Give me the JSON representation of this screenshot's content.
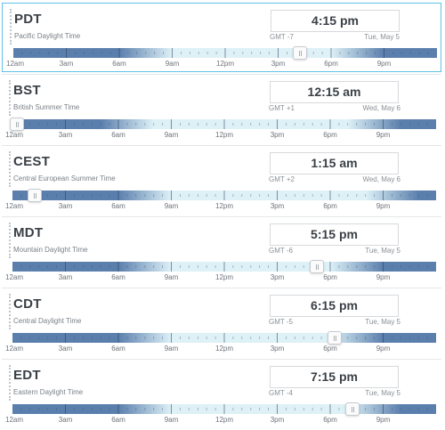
{
  "hour_labels": [
    "12am",
    "3am",
    "6am",
    "9am",
    "12pm",
    "3pm",
    "6pm",
    "9pm"
  ],
  "zones": [
    {
      "abbr": "PDT",
      "name": "Pacific Daylight Time",
      "time": "4:15 pm",
      "gmt": "GMT -7",
      "date": "Tue, May 5",
      "local_hour": 16.25,
      "day_start": 7,
      "day_end": 20
    },
    {
      "abbr": "BST",
      "name": "British Summer Time",
      "time": "12:15 am",
      "gmt": "GMT +1",
      "date": "Wed, May 6",
      "local_hour": 0.25,
      "day_start": 6,
      "day_end": 21
    },
    {
      "abbr": "CEST",
      "name": "Central European Summer Time",
      "time": "1:15 am",
      "gmt": "GMT +2",
      "date": "Wed, May 6",
      "local_hour": 1.25,
      "day_start": 7,
      "day_end": 22
    },
    {
      "abbr": "MDT",
      "name": "Mountain Daylight Time",
      "time": "5:15 pm",
      "gmt": "GMT -6",
      "date": "Tue, May 5",
      "local_hour": 17.25,
      "day_start": 7,
      "day_end": 20
    },
    {
      "abbr": "CDT",
      "name": "Central Daylight Time",
      "time": "6:15 pm",
      "gmt": "GMT -5",
      "date": "Tue, May 5",
      "local_hour": 18.25,
      "day_start": 7,
      "day_end": 20
    },
    {
      "abbr": "EDT",
      "name": "Eastern Daylight Time",
      "time": "7:15 pm",
      "gmt": "GMT -4",
      "date": "Tue, May 5",
      "local_hour": 19.25,
      "day_start": 7,
      "day_end": 21
    }
  ],
  "colors": {
    "night": "#5b7fad",
    "day": "#ddf1f7",
    "selected_border": "#5fc2e6"
  }
}
